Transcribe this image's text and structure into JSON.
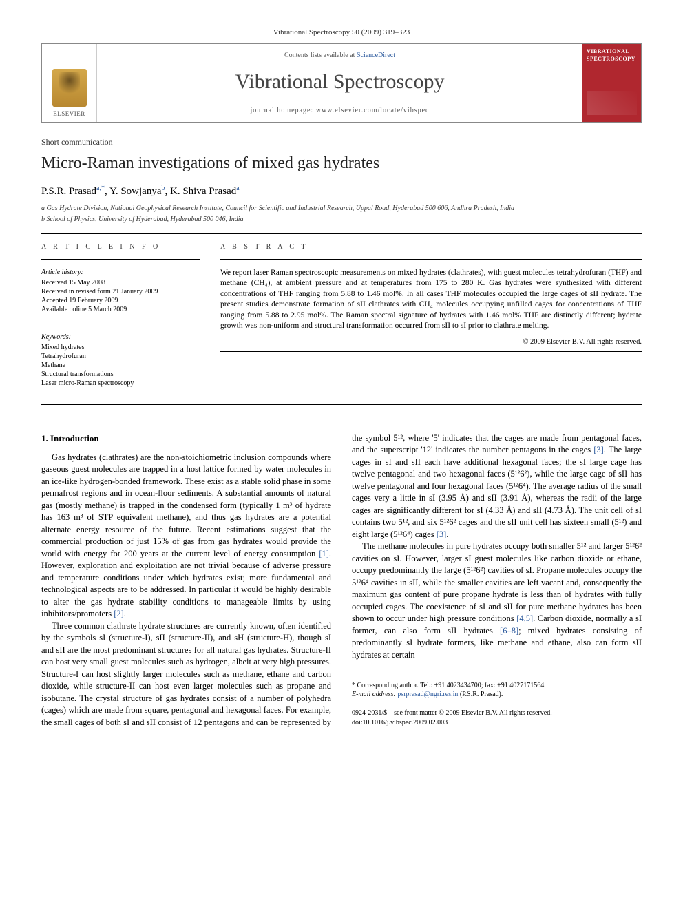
{
  "header": {
    "citation": "Vibrational Spectroscopy 50 (2009) 319–323",
    "contents_prefix": "Contents lists available at ",
    "contents_link": "ScienceDirect",
    "journal_title": "Vibrational Spectroscopy",
    "homepage_prefix": "journal homepage: ",
    "homepage_url": "www.elsevier.com/locate/vibspec",
    "publisher_label": "ELSEVIER",
    "cover_label": "VIBRATIONAL SPECTROSCOPY"
  },
  "article": {
    "type": "Short communication",
    "title": "Micro-Raman investigations of mixed gas hydrates",
    "authors_html": "P.S.R. Prasad",
    "author1": "P.S.R. Prasad",
    "author1_sup": "a,*",
    "author2": "Y. Sowjanya",
    "author2_sup": "b",
    "author3": "K. Shiva Prasad",
    "author3_sup": "a",
    "affiliations": {
      "a": "a Gas Hydrate Division, National Geophysical Research Institute, Council for Scientific and Industrial Research, Uppal Road, Hyderabad 500 606, Andhra Pradesh, India",
      "b": "b School of Physics, University of Hyderabad, Hyderabad 500 046, India"
    }
  },
  "info": {
    "section_label": "A R T I C L E  I N F O",
    "history_label": "Article history:",
    "history": {
      "received": "Received 15 May 2008",
      "revised": "Received in revised form 21 January 2009",
      "accepted": "Accepted 19 February 2009",
      "online": "Available online 5 March 2009"
    },
    "keywords_label": "Keywords:",
    "keywords": [
      "Mixed hydrates",
      "Tetrahydrofuran",
      "Methane",
      "Structural transformations",
      "Laser micro-Raman spectroscopy"
    ]
  },
  "abstract": {
    "section_label": "A B S T R A C T",
    "text": "We report laser Raman spectroscopic measurements on mixed hydrates (clathrates), with guest molecules tetrahydrofuran (THF) and methane (CH₄), at ambient pressure and at temperatures from 175 to 280 K. Gas hydrates were synthesized with different concentrations of THF ranging from 5.88 to 1.46 mol%. In all cases THF molecules occupied the large cages of sII hydrate. The present studies demonstrate formation of sII clathrates with CH₄ molecules occupying unfilled cages for concentrations of THF ranging from 5.88 to 2.95 mol%. The Raman spectral signature of hydrates with 1.46 mol% THF are distinctly different; hydrate growth was non-uniform and structural transformation occurred from sII to sI prior to clathrate melting.",
    "copyright": "© 2009 Elsevier B.V. All rights reserved."
  },
  "body": {
    "section1_title": "1. Introduction",
    "p1": "Gas hydrates (clathrates) are the non-stoichiometric inclusion compounds where gaseous guest molecules are trapped in a host lattice formed by water molecules in an ice-like hydrogen-bonded framework. These exist as a stable solid phase in some permafrost regions and in ocean-floor sediments. A substantial amounts of natural gas (mostly methane) is trapped in the condensed form (typically 1 m³ of hydrate has 163 m³ of STP equivalent methane), and thus gas hydrates are a potential alternate energy resource of the future. Recent estimations suggest that the commercial production of just 15% of gas from gas hydrates would provide the world with energy for 200 years at the current level of energy consumption ",
    "ref1": "[1]",
    "p1b": ". However, exploration and exploitation are not trivial because of adverse pressure and temperature conditions under which hydrates exist; more fundamental and technological aspects are to be addressed. In particular it would be highly desirable to alter the gas hydrate stability conditions to manageable limits by using inhibitors/promoters ",
    "ref2": "[2]",
    "p1c": ".",
    "p2": "Three common clathrate hydrate structures are currently known, often identified by the symbols sI (structure-I), sII (structure-II), and sH (structure-H), though sI and sII are the most predominant structures for all natural gas hydrates. Structure-II can host very small guest molecules such as hydrogen, albeit at very high pressures. Structure-I can host slightly larger molecules such as methane, ethane and carbon dioxide, while structure-II can host even larger molecules such as propane and isobutane. The crystal structure of gas hydrates consist of a number of polyhedra (cages) which are made from square, pentagonal and hexagonal faces. For example, the small cages of both sI and sII consist of 12 pentagons and can be represented by the symbol 5¹², where '5' indicates that the cages are made from pentagonal faces, and the superscript '12' indicates the number pentagons in the cages ",
    "ref3a": "[3]",
    "p2b": ". The large cages in sI and sII each have additional hexagonal faces; the sI large cage has twelve pentagonal and two hexagonal faces (5¹²6²), while the large cage of sII has twelve pentagonal and four hexagonal faces (5¹²6⁴). The average radius of the small cages very a little in sI (3.95 Å) and sII (3.91 Å), whereas the radii of the large cages are significantly different for sI (4.33 Å) and sII (4.73 Å). The unit cell of sI contains two 5¹², and six 5¹²6² cages and the sII unit cell has sixteen small (5¹²) and eight large (5¹²6⁴) cages ",
    "ref3b": "[3]",
    "p2c": ".",
    "p3": "The methane molecules in pure hydrates occupy both smaller 5¹² and larger 5¹²6² cavities on sI. However, larger sI guest molecules like carbon dioxide or ethane, occupy predominantly the large (5¹²6²) cavities of sI. Propane molecules occupy the 5¹²6⁴ cavities in sII, while the smaller cavities are left vacant and, consequently the maximum gas content of pure propane hydrate is less than of hydrates with fully occupied cages. The coexistence of sI and sII for pure methane hydrates has been shown to occur under high pressure conditions ",
    "ref45": "[4,5]",
    "p3b": ". Carbon dioxide, normally a sI former, can also form sII hydrates ",
    "ref68": "[6–8]",
    "p3c": "; mixed hydrates consisting of predominantly sI hydrate formers, like methane and ethane, also can form sII hydrates at certain"
  },
  "footnote": {
    "corr": "* Corresponding author. Tel.: +91 4023434700; fax: +91 4027171564.",
    "email_label": "E-mail address: ",
    "email": "psrprasad@ngri.res.in",
    "email_suffix": " (P.S.R. Prasad)."
  },
  "footer": {
    "line1": "0924-2031/$ – see front matter © 2009 Elsevier B.V. All rights reserved.",
    "doi": "doi:10.1016/j.vibspec.2009.02.003"
  },
  "colors": {
    "link": "#2e5b9e",
    "cover_bg": "#b0272f",
    "text": "#000000",
    "elsevier_orange": "#d4a84a"
  }
}
